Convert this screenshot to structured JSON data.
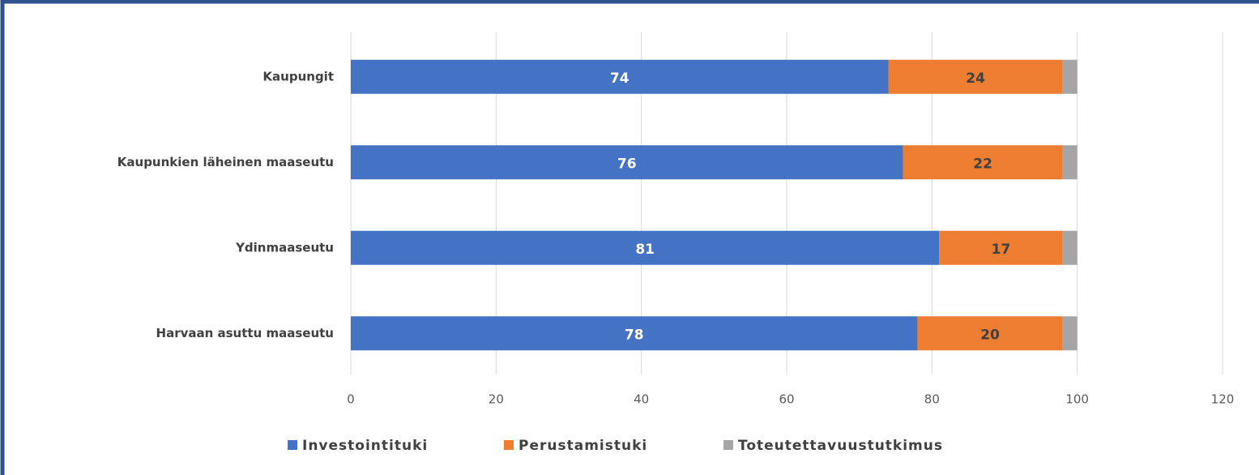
{
  "chart_data": {
    "type": "stacked_barh",
    "categories": [
      "Kaupungit",
      "Kaupunkien läheinen maaseutu",
      "Ydinmaaseutu",
      "Harvaan asuttu maaseutu"
    ],
    "series": [
      {
        "name": "Investointituki",
        "color": "#4472c4",
        "values": [
          74,
          76,
          81,
          78
        ]
      },
      {
        "name": "Perustamistuki",
        "color": "#ed7d31",
        "values": [
          24,
          22,
          17,
          20
        ]
      },
      {
        "name": "Toteutettavuustutkimus",
        "color": "#a5a5a5",
        "values": [
          2,
          2,
          2,
          2
        ]
      }
    ],
    "xlim": [
      0,
      120
    ],
    "xticks": [
      0,
      20,
      40,
      60,
      80,
      100,
      120
    ],
    "grid": true,
    "legend": "bottom"
  }
}
